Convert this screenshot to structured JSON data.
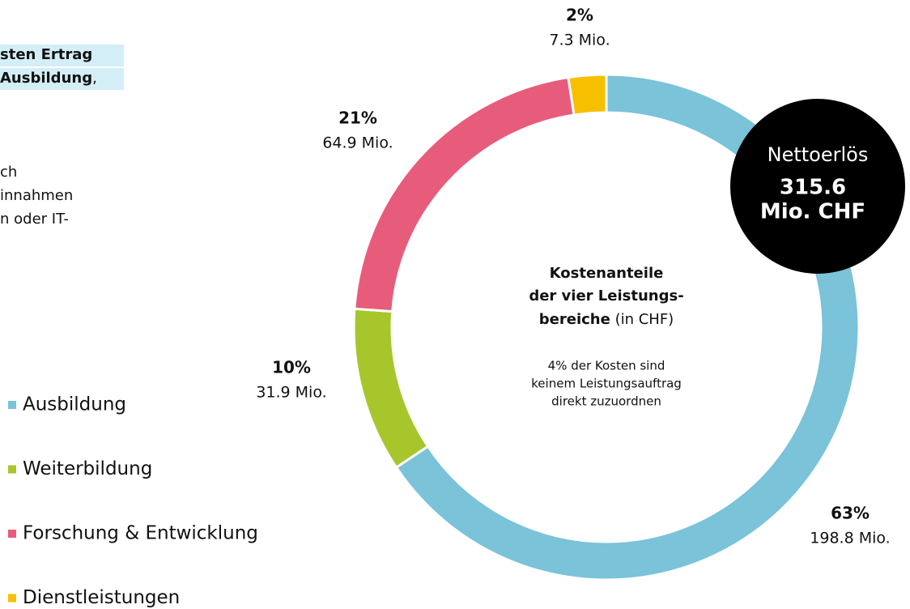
{
  "chart_data": {
    "type": "donut",
    "categories": [
      "Ausbildung",
      "Weiterbildung",
      "Forschung & Entwicklung",
      "Dienstleistungen"
    ],
    "values": [
      198.8,
      31.9,
      64.9,
      7.3
    ],
    "value_labels": [
      "198.8 Mio.",
      "31.9 Mio.",
      "64.9 Mio.",
      "7.3 Mio."
    ],
    "share_labels": [
      "63%",
      "10%",
      "21%",
      "2%"
    ],
    "colors": [
      "#7ac3d9",
      "#a7c62c",
      "#e85c7b",
      "#f6c000"
    ],
    "center_title": [
      "Kostenanteile",
      "der vier Leistungs-",
      "bereiche"
    ],
    "center_unit": "(in CHF)",
    "center_note": [
      "4% der Kosten sind",
      "keinem Leistungsauftrag",
      "direkt zuzuordnen"
    ],
    "badge": {
      "label": "Nettoerlös",
      "value": "315.6",
      "unit": "Mio. CHF"
    },
    "side_text": {
      "bold": [
        "sten Ertrag",
        "Ausbildung"
      ],
      "comma": ",",
      "lines": [
        "ch",
        "innahmen",
        "n oder IT-"
      ]
    },
    "legend": true
  }
}
